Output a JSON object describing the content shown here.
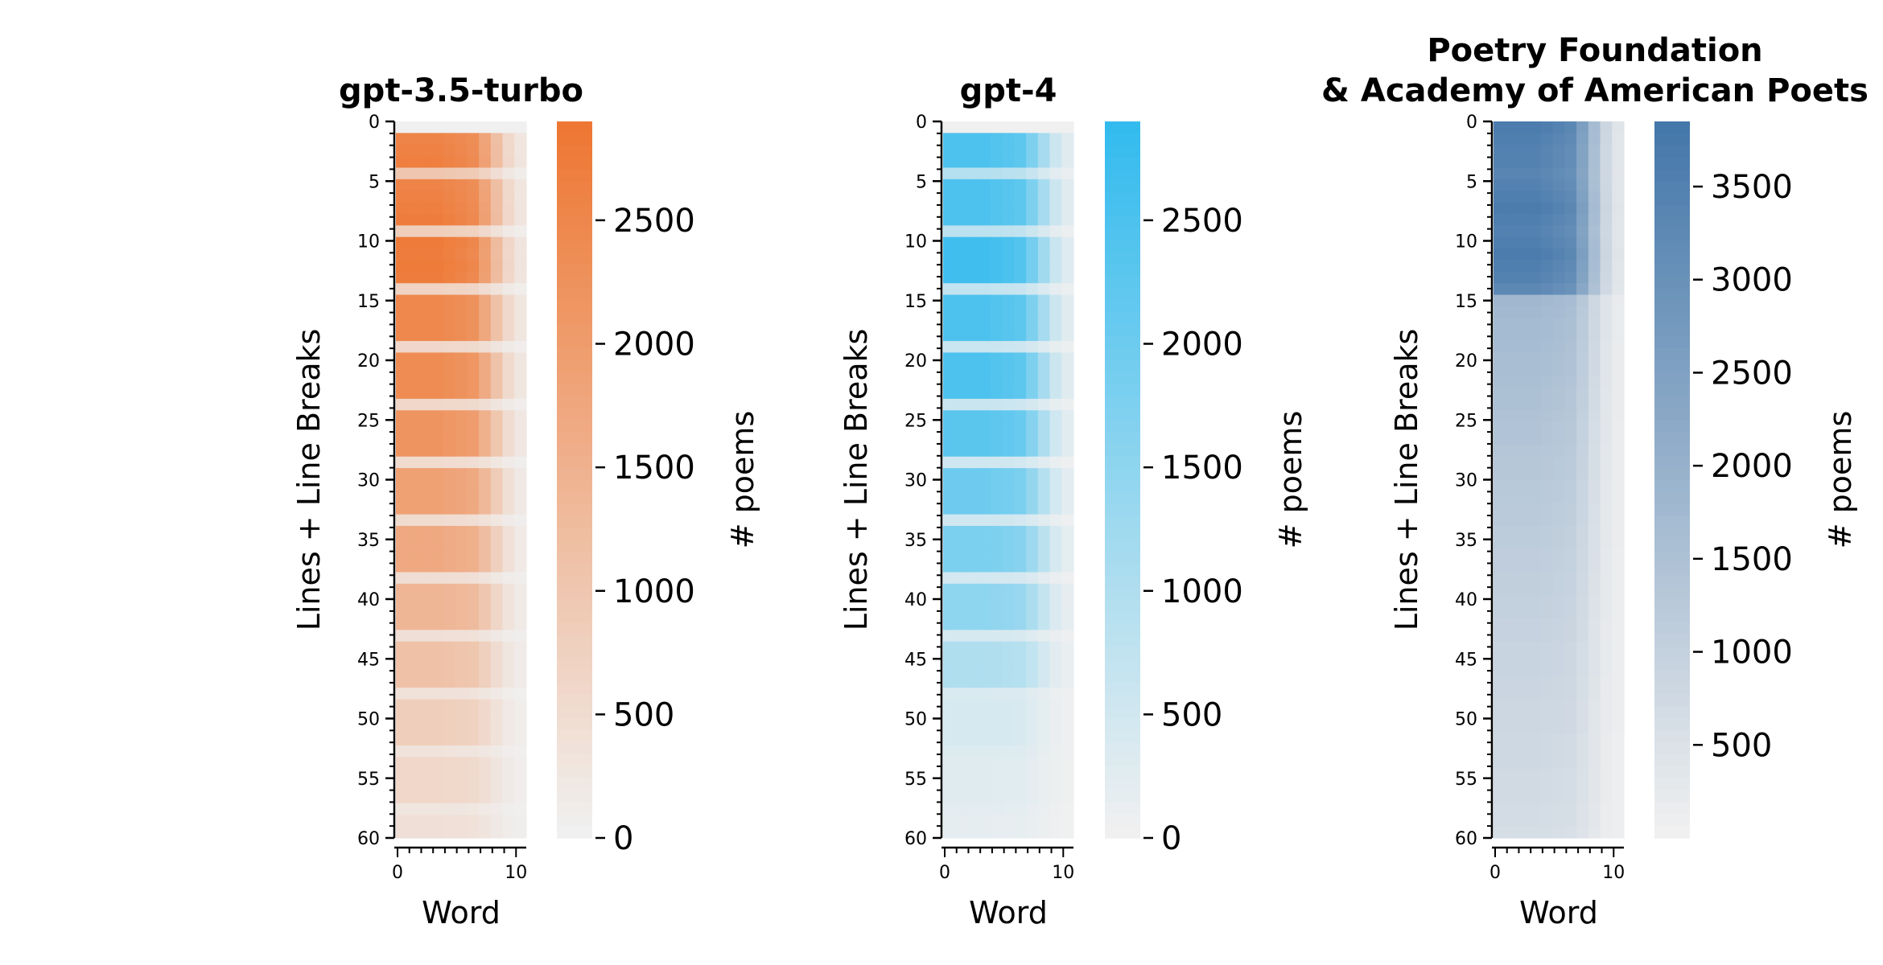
{
  "chart_data": [
    {
      "type": "heatmap",
      "title_lines": [
        "gpt-3.5-turbo"
      ],
      "xlabel": "Word",
      "ylabel": "Lines + Line Breaks",
      "colorbar_label": "# poems",
      "color": "#ee7733",
      "x_range": [
        0,
        10
      ],
      "y_range": [
        0,
        60
      ],
      "x_ticks": [
        0,
        10
      ],
      "y_ticks": [
        0,
        5,
        10,
        15,
        20,
        25,
        30,
        35,
        40,
        45,
        50,
        55,
        60
      ],
      "color_range": [
        0,
        2900
      ],
      "color_ticks": [
        0,
        500,
        1000,
        1500,
        2000,
        2500
      ],
      "row_values": [
        0,
        2600,
        2650,
        2700,
        1000,
        2600,
        2650,
        2700,
        2750,
        800,
        2800,
        2750,
        2800,
        2750,
        700,
        2500,
        2500,
        2500,
        2500,
        600,
        2400,
        2400,
        2400,
        2400,
        600,
        2200,
        2200,
        2200,
        2200,
        500,
        1900,
        1900,
        1900,
        1900,
        500,
        1700,
        1700,
        1700,
        1700,
        450,
        1400,
        1400,
        1400,
        1400,
        400,
        1100,
        1100,
        1100,
        1100,
        350,
        800,
        800,
        800,
        800,
        300,
        600,
        600,
        600,
        600,
        250,
        400,
        400
      ]
    },
    {
      "type": "heatmap",
      "title_lines": [
        "gpt-4"
      ],
      "xlabel": "Word",
      "ylabel": "Lines + Line Breaks",
      "colorbar_label": "# poems",
      "color": "#33bbee",
      "x_range": [
        0,
        10
      ],
      "y_range": [
        0,
        60
      ],
      "x_ticks": [
        0,
        10
      ],
      "y_ticks": [
        0,
        5,
        10,
        15,
        20,
        25,
        30,
        35,
        40,
        45,
        50,
        55,
        60
      ],
      "color_range": [
        0,
        2900
      ],
      "color_ticks": [
        0,
        500,
        1000,
        1500,
        2000,
        2500
      ],
      "row_values": [
        0,
        2500,
        2500,
        2500,
        900,
        2500,
        2500,
        2500,
        2500,
        800,
        2700,
        2700,
        2700,
        2700,
        700,
        2500,
        2500,
        2500,
        2500,
        600,
        2500,
        2500,
        2500,
        2500,
        600,
        2300,
        2300,
        2300,
        2300,
        500,
        2000,
        2000,
        2000,
        2000,
        500,
        1800,
        1800,
        1800,
        1800,
        450,
        1500,
        1500,
        1500,
        1500,
        400,
        1000,
        1000,
        1000,
        1000,
        350,
        400,
        400,
        400,
        400,
        300,
        250,
        250,
        250,
        250,
        200,
        150,
        150
      ]
    },
    {
      "type": "heatmap",
      "title_lines": [
        "Poetry Foundation",
        "& Academy of American Poets"
      ],
      "xlabel": "Word",
      "ylabel": "Lines + Line Breaks",
      "colorbar_label": "# poems",
      "color": "#4477aa",
      "x_range": [
        0,
        10
      ],
      "y_range": [
        0,
        60
      ],
      "x_ticks": [
        0,
        10
      ],
      "y_ticks": [
        0,
        5,
        10,
        15,
        20,
        25,
        30,
        35,
        40,
        45,
        50,
        55,
        60
      ],
      "color_range": [
        0,
        3850
      ],
      "color_ticks": [
        500,
        1000,
        1500,
        2000,
        2500,
        3000,
        3500
      ],
      "row_values": [
        3700,
        3600,
        3500,
        3500,
        3400,
        3500,
        3600,
        3700,
        3600,
        3500,
        3600,
        3700,
        3600,
        3500,
        3300,
        1800,
        1750,
        1700,
        1700,
        1650,
        1600,
        1600,
        1550,
        1500,
        1500,
        1450,
        1400,
        1400,
        1350,
        1300,
        1300,
        1250,
        1250,
        1200,
        1200,
        1150,
        1150,
        1100,
        1100,
        1050,
        1050,
        1000,
        1000,
        950,
        950,
        900,
        900,
        900,
        850,
        850,
        800,
        800,
        800,
        750,
        750,
        750,
        700,
        700,
        700,
        650,
        650,
        600
      ]
    }
  ]
}
